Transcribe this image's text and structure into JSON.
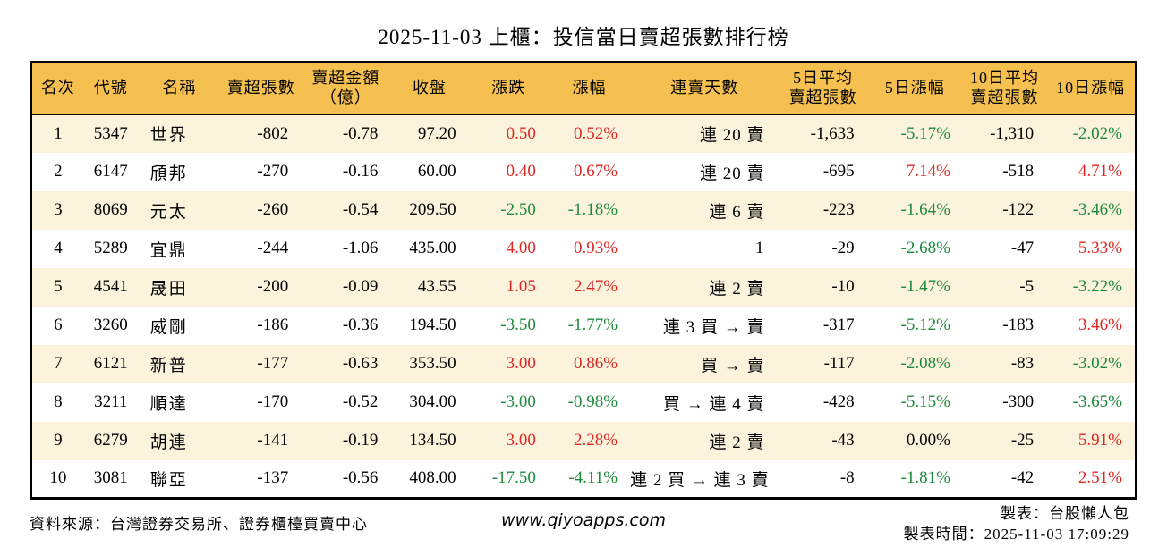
{
  "title": "2025-11-03 上櫃：投信當日賣超張數排行榜",
  "colors": {
    "red_up": "#DC2823",
    "green_down": "#1E8B3C",
    "header_bg": "#F6C050",
    "stripe_bg": "#FCF3DC",
    "border": "#000000"
  },
  "table": {
    "headers": [
      "名次",
      "代號",
      "名稱",
      "賣超張數",
      "賣超金額\n（億）",
      "收盤",
      "漲跌",
      "漲幅",
      "連賣天數",
      "5日平均\n賣超張數",
      "5日漲幅",
      "10日平均\n賣超張數",
      "10日漲幅"
    ],
    "rows": [
      {
        "cells": [
          "1",
          "5347",
          "世界",
          "-802",
          "-0.78",
          "97.20",
          "0.50",
          "0.52%",
          "連 20 賣",
          "-1,633",
          "-5.17%",
          "-1,310",
          "-2.02%"
        ],
        "colors": [
          "k",
          "k",
          "k",
          "k",
          "k",
          "k",
          "r",
          "r",
          "k",
          "k",
          "g",
          "k",
          "g"
        ]
      },
      {
        "cells": [
          "2",
          "6147",
          "頎邦",
          "-270",
          "-0.16",
          "60.00",
          "0.40",
          "0.67%",
          "連 20 賣",
          "-695",
          "7.14%",
          "-518",
          "4.71%"
        ],
        "colors": [
          "k",
          "k",
          "k",
          "k",
          "k",
          "k",
          "r",
          "r",
          "k",
          "k",
          "r",
          "k",
          "r"
        ]
      },
      {
        "cells": [
          "3",
          "8069",
          "元太",
          "-260",
          "-0.54",
          "209.50",
          "-2.50",
          "-1.18%",
          "連 6 賣",
          "-223",
          "-1.64%",
          "-122",
          "-3.46%"
        ],
        "colors": [
          "k",
          "k",
          "k",
          "k",
          "k",
          "k",
          "g",
          "g",
          "k",
          "k",
          "g",
          "k",
          "g"
        ]
      },
      {
        "cells": [
          "4",
          "5289",
          "宜鼎",
          "-244",
          "-1.06",
          "435.00",
          "4.00",
          "0.93%",
          "1",
          "-29",
          "-2.68%",
          "-47",
          "5.33%"
        ],
        "colors": [
          "k",
          "k",
          "k",
          "k",
          "k",
          "k",
          "r",
          "r",
          "k",
          "k",
          "g",
          "k",
          "r"
        ]
      },
      {
        "cells": [
          "5",
          "4541",
          "晟田",
          "-200",
          "-0.09",
          "43.55",
          "1.05",
          "2.47%",
          "連 2 賣",
          "-10",
          "-1.47%",
          "-5",
          "-3.22%"
        ],
        "colors": [
          "k",
          "k",
          "k",
          "k",
          "k",
          "k",
          "r",
          "r",
          "k",
          "k",
          "g",
          "k",
          "g"
        ]
      },
      {
        "cells": [
          "6",
          "3260",
          "威剛",
          "-186",
          "-0.36",
          "194.50",
          "-3.50",
          "-1.77%",
          "連 3 買 → 賣",
          "-317",
          "-5.12%",
          "-183",
          "3.46%"
        ],
        "colors": [
          "k",
          "k",
          "k",
          "k",
          "k",
          "k",
          "g",
          "g",
          "k",
          "k",
          "g",
          "k",
          "r"
        ]
      },
      {
        "cells": [
          "7",
          "6121",
          "新普",
          "-177",
          "-0.63",
          "353.50",
          "3.00",
          "0.86%",
          "買 → 賣",
          "-117",
          "-2.08%",
          "-83",
          "-3.02%"
        ],
        "colors": [
          "k",
          "k",
          "k",
          "k",
          "k",
          "k",
          "r",
          "r",
          "k",
          "k",
          "g",
          "k",
          "g"
        ]
      },
      {
        "cells": [
          "8",
          "3211",
          "順達",
          "-170",
          "-0.52",
          "304.00",
          "-3.00",
          "-0.98%",
          "買 → 連 4 賣",
          "-428",
          "-5.15%",
          "-300",
          "-3.65%"
        ],
        "colors": [
          "k",
          "k",
          "k",
          "k",
          "k",
          "k",
          "g",
          "g",
          "k",
          "k",
          "g",
          "k",
          "g"
        ]
      },
      {
        "cells": [
          "9",
          "6279",
          "胡連",
          "-141",
          "-0.19",
          "134.50",
          "3.00",
          "2.28%",
          "連 2 賣",
          "-43",
          "0.00%",
          "-25",
          "5.91%"
        ],
        "colors": [
          "k",
          "k",
          "k",
          "k",
          "k",
          "k",
          "r",
          "r",
          "k",
          "k",
          "k",
          "k",
          "r"
        ]
      },
      {
        "cells": [
          "10",
          "3081",
          "聯亞",
          "-137",
          "-0.56",
          "408.00",
          "-17.50",
          "-4.11%",
          "連 2 買 → 連 3 賣",
          "-8",
          "-1.81%",
          "-42",
          "2.51%"
        ],
        "colors": [
          "k",
          "k",
          "k",
          "k",
          "k",
          "k",
          "g",
          "g",
          "k",
          "k",
          "g",
          "k",
          "r"
        ]
      }
    ]
  },
  "footer": {
    "source": "資料來源：台灣證券交易所、證券櫃檯買賣中心",
    "website": "www.qiyoapps.com",
    "maker": "製表：台股懶人包",
    "made_time": "製表時間：2025-11-03 17:09:29"
  }
}
